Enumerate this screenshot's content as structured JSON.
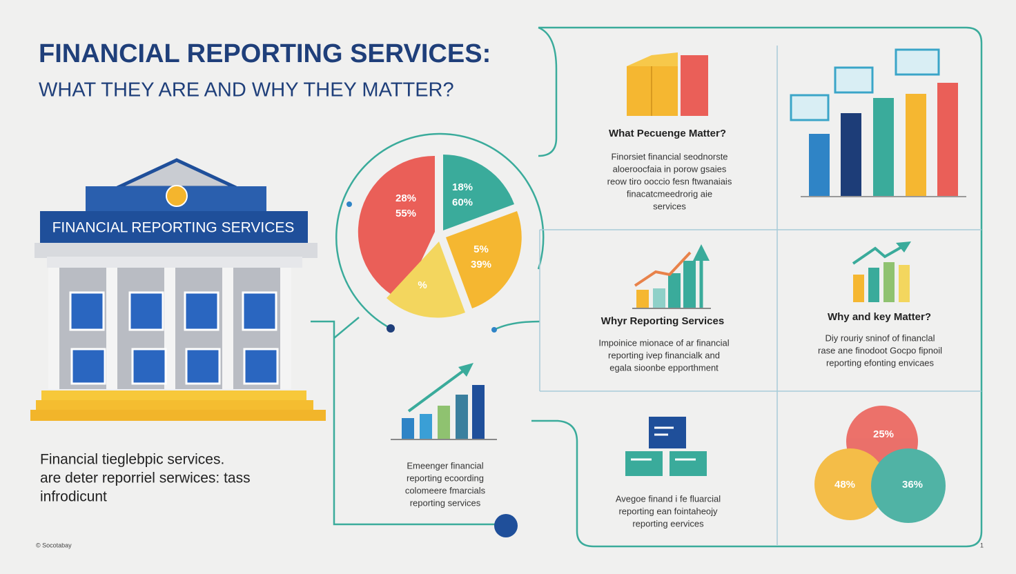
{
  "header": {
    "title": "FINANCIAL REPORTING SERVICES:",
    "subtitle": "WHAT THEY ARE AND WHY THEY MATTER?"
  },
  "building": {
    "sign": "FINANCIAL REPORTING SERVICES"
  },
  "intro": {
    "lines": [
      "Financial tieglebpic services.",
      "are deter reporriel serwices: tass",
      "infrodicunt"
    ]
  },
  "pie": {
    "labels": [
      "28%",
      "55%",
      "18%",
      "60%",
      "5%",
      "39%",
      "%"
    ]
  },
  "center": {
    "lines": [
      "Emeenger financial",
      "reporting ecoording",
      "colomeere fmarcials",
      "reporting services"
    ]
  },
  "panels": [
    {
      "heading": "What Pecuenge Matter?",
      "body": [
        "Finorsiet financial seodnorste",
        "aloeroocfaia in porow gsaies",
        "reow tiro ooccio fesn ftwanaiais",
        "finacatcmeedrorig aie",
        "services"
      ]
    },
    {
      "heading": "Whyr Reporting Services",
      "body": [
        "Impoinice mionace of ar financial",
        "reporting ivep financialk and",
        "egala sioonbe epporthment"
      ]
    },
    {
      "heading": "Why and key Matter?",
      "body": [
        "Diy rouriy sninof of financlal",
        "rase ane finodoot Gocpo fipnoil",
        "reporting efonting envicaes"
      ]
    },
    {
      "heading": null,
      "body": [
        "Avegoe finand i fe fluarcial",
        "reporting ean fointaheojy",
        "reporting eervices"
      ]
    }
  ],
  "venn": {
    "labels": [
      "25%",
      "48%",
      "36%"
    ]
  },
  "footer": {
    "credit": "© Socotabay",
    "page": "1"
  }
}
